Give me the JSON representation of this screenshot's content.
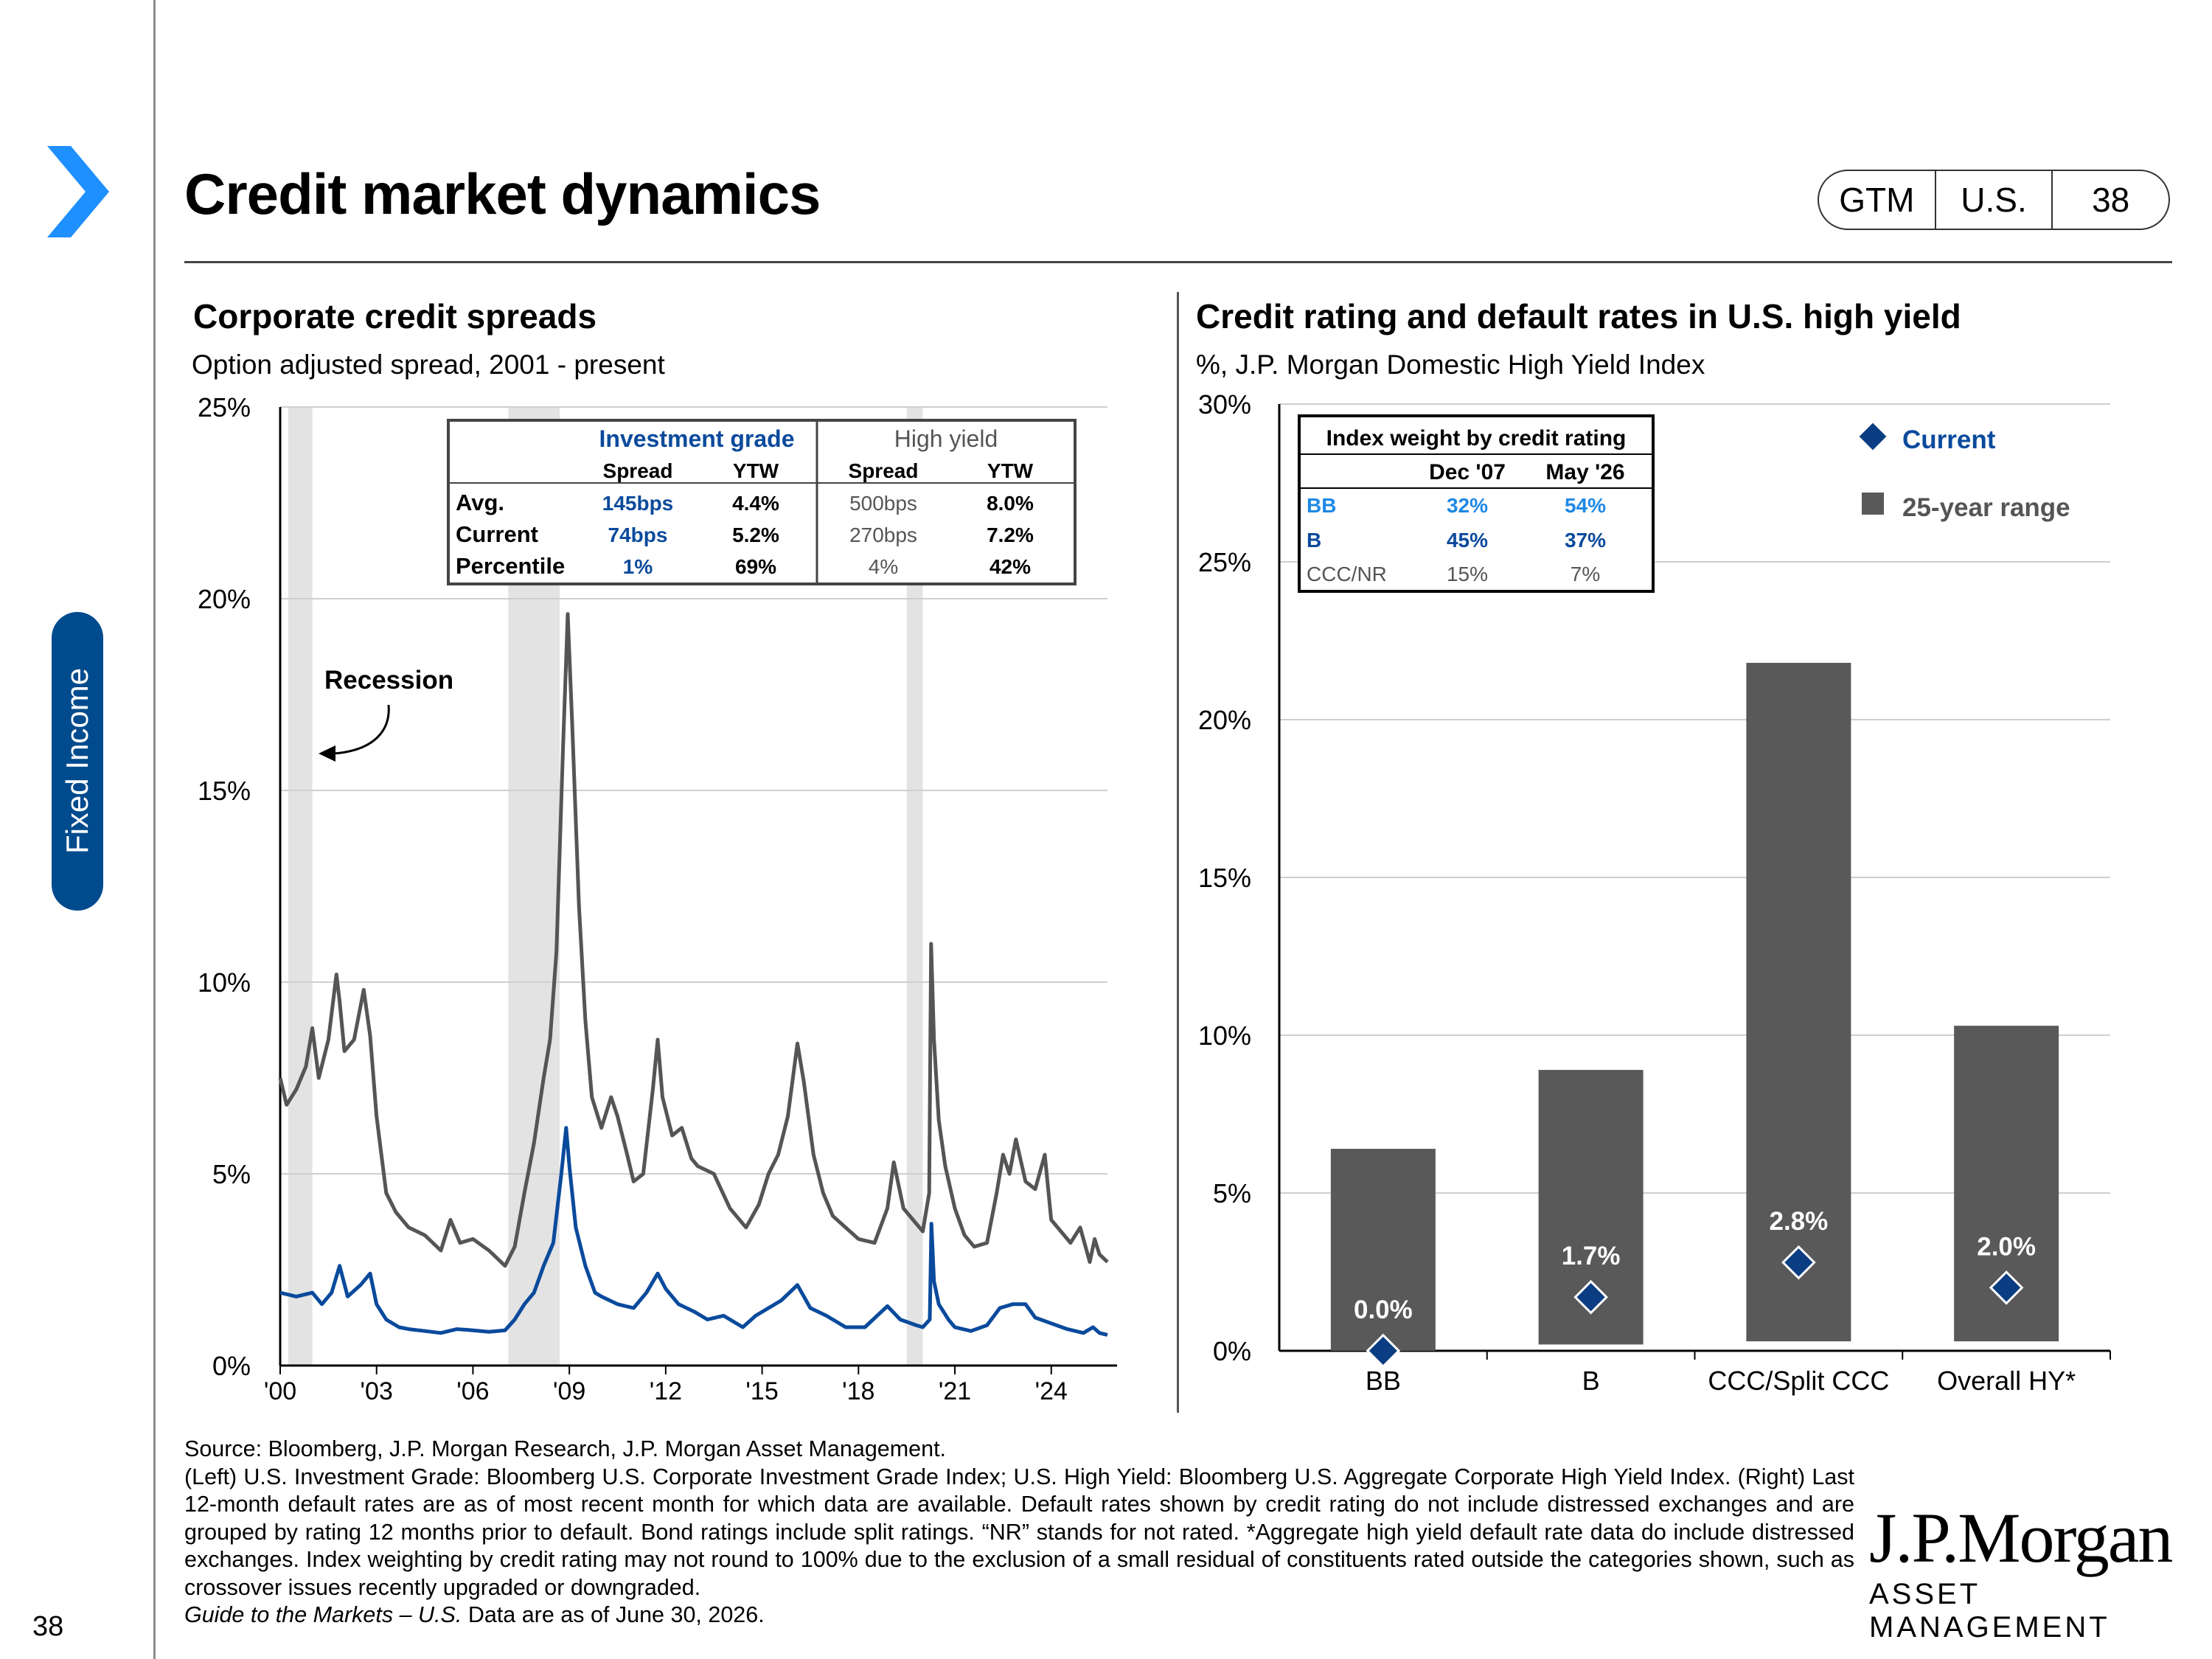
{
  "page": {
    "title": "Credit market dynamics",
    "section_tab": "Fixed Income",
    "page_number": "38",
    "badge": [
      "GTM",
      "U.S.",
      "38"
    ]
  },
  "left_chart": {
    "title": "Corporate credit spreads",
    "subtitle": "Option adjusted spread, 2001 - present"
  },
  "right_chart": {
    "title": "Credit rating and default rates in U.S. high yield",
    "subtitle": "%, J.P. Morgan Domestic High Yield Index"
  },
  "footnotes": {
    "source": "Source: Bloomberg, J.P. Morgan Research, J.P. Morgan Asset Management.",
    "notes": "(Left) U.S. Investment Grade: Bloomberg U.S. Corporate Investment Grade Index; U.S. High Yield: Bloomberg U.S. Aggregate Corporate High Yield Index. (Right) Last 12-month default rates are as of most recent month for which data are available. Default rates shown by credit rating do not include distressed exchanges and are grouped by rating 12 months prior to default. Bond ratings include split ratings. “NR” stands for not rated. *Aggregate high yield default rate data do include distressed exchanges. Index weighting by credit rating may not round to 100% due to the exclusion of a small residual of constituents rated outside the categories shown, such as crossover issues recently upgraded or downgraded.",
    "guide_italic": "Guide to the Markets – U.S.",
    "guide_date": " Data are as of June 30, 2026."
  },
  "logo": {
    "name": "J.P.Morgan",
    "sub": "ASSET MANAGEMENT"
  },
  "colors": {
    "ig": "#0a4a9c",
    "hy": "#555555",
    "recession": "#e3e3e3",
    "accent": "#1e90ff",
    "bar": "#595959",
    "diamond": "#0a3d82",
    "bb_text": "#1e88e5"
  },
  "chart_data": [
    {
      "type": "line",
      "title": "Corporate credit spreads",
      "subtitle": "Option adjusted spread, 2001 - present",
      "ylim": [
        0,
        25
      ],
      "yticks": [
        "0%",
        "5%",
        "10%",
        "15%",
        "20%",
        "25%"
      ],
      "xticks": [
        "'00",
        "'03",
        "'06",
        "'09",
        "'12",
        "'15",
        "'18",
        "'21",
        "'24"
      ],
      "xlim": [
        2000.0,
        2025.75
      ],
      "grid": true,
      "annotation": "Recession",
      "recessions": [
        [
          2000.25,
          2001.0
        ],
        [
          2007.1,
          2008.7
        ],
        [
          2019.5,
          2020.0
        ]
      ],
      "series": [
        {
          "key": "hy",
          "x": [
            2000.0,
            2000.2,
            2000.5,
            2000.8,
            2001.0,
            2001.2,
            2001.5,
            2001.75,
            2001.85,
            2002.0,
            2002.3,
            2002.6,
            2002.8,
            2003.0,
            2003.3,
            2003.6,
            2004.0,
            2004.5,
            2005.0,
            2005.3,
            2005.6,
            2006.0,
            2006.5,
            2007.0,
            2007.3,
            2007.6,
            2007.9,
            2008.2,
            2008.4,
            2008.6,
            2008.8,
            2008.95,
            2009.1,
            2009.3,
            2009.5,
            2009.7,
            2010.0,
            2010.3,
            2010.5,
            2010.8,
            2011.0,
            2011.3,
            2011.6,
            2011.75,
            2011.9,
            2012.2,
            2012.5,
            2012.8,
            2013.0,
            2013.5,
            2014.0,
            2014.5,
            2014.9,
            2015.2,
            2015.5,
            2015.8,
            2016.1,
            2016.3,
            2016.6,
            2016.9,
            2017.2,
            2017.6,
            2018.0,
            2018.5,
            2018.9,
            2019.1,
            2019.4,
            2019.8,
            2020.0,
            2020.2,
            2020.26,
            2020.35,
            2020.5,
            2020.7,
            2021.0,
            2021.3,
            2021.6,
            2022.0,
            2022.3,
            2022.5,
            2022.7,
            2022.9,
            2023.2,
            2023.5,
            2023.8,
            2024.0,
            2024.3,
            2024.6,
            2024.9,
            2025.2,
            2025.35,
            2025.5,
            2025.75
          ],
          "y": [
            7.5,
            6.8,
            7.2,
            7.8,
            8.8,
            7.5,
            8.5,
            10.2,
            9.5,
            8.2,
            8.5,
            9.8,
            8.6,
            6.5,
            4.5,
            4.0,
            3.6,
            3.4,
            3.0,
            3.8,
            3.2,
            3.3,
            3.0,
            2.6,
            3.1,
            4.5,
            5.8,
            7.5,
            8.5,
            10.8,
            16.0,
            19.6,
            16.5,
            12.0,
            9.0,
            7.0,
            6.2,
            7.0,
            6.5,
            5.5,
            4.8,
            5.0,
            7.2,
            8.5,
            7.0,
            6.0,
            6.2,
            5.4,
            5.2,
            5.0,
            4.1,
            3.6,
            4.2,
            5.0,
            5.5,
            6.5,
            8.4,
            7.4,
            5.5,
            4.5,
            3.9,
            3.6,
            3.3,
            3.2,
            4.1,
            5.3,
            4.1,
            3.7,
            3.5,
            4.5,
            11.0,
            8.5,
            6.4,
            5.2,
            4.1,
            3.4,
            3.1,
            3.2,
            4.5,
            5.5,
            5.0,
            5.9,
            4.8,
            4.6,
            5.5,
            3.8,
            3.5,
            3.2,
            3.6,
            2.7,
            3.3,
            2.9,
            2.7
          ]
        },
        {
          "key": "ig",
          "x": [
            2000.0,
            2000.5,
            2001.0,
            2001.3,
            2001.6,
            2001.85,
            2002.1,
            2002.5,
            2002.8,
            2003.0,
            2003.3,
            2003.7,
            2004.0,
            2004.5,
            2005.0,
            2005.5,
            2006.0,
            2006.5,
            2007.0,
            2007.3,
            2007.6,
            2007.9,
            2008.2,
            2008.5,
            2008.75,
            2008.9,
            2009.0,
            2009.2,
            2009.5,
            2009.8,
            2010.0,
            2010.5,
            2011.0,
            2011.4,
            2011.75,
            2012.0,
            2012.4,
            2012.9,
            2013.3,
            2013.8,
            2014.4,
            2014.8,
            2015.2,
            2015.6,
            2016.1,
            2016.5,
            2017.0,
            2017.6,
            2018.2,
            2018.9,
            2019.3,
            2019.8,
            2020.0,
            2020.22,
            2020.27,
            2020.35,
            2020.5,
            2020.8,
            2021.0,
            2021.5,
            2022.0,
            2022.4,
            2022.8,
            2023.2,
            2023.5,
            2024.0,
            2024.5,
            2025.0,
            2025.3,
            2025.5,
            2025.75
          ],
          "y": [
            1.9,
            1.8,
            1.9,
            1.6,
            1.9,
            2.6,
            1.8,
            2.1,
            2.4,
            1.6,
            1.2,
            1.0,
            0.95,
            0.9,
            0.85,
            0.95,
            0.92,
            0.88,
            0.92,
            1.2,
            1.6,
            1.9,
            2.6,
            3.2,
            5.0,
            6.2,
            5.2,
            3.6,
            2.6,
            1.9,
            1.8,
            1.6,
            1.5,
            1.9,
            2.4,
            2.0,
            1.6,
            1.4,
            1.2,
            1.3,
            1.0,
            1.3,
            1.5,
            1.7,
            2.1,
            1.5,
            1.3,
            1.0,
            1.0,
            1.55,
            1.2,
            1.05,
            1.0,
            1.2,
            3.7,
            2.2,
            1.6,
            1.2,
            1.0,
            0.9,
            1.05,
            1.5,
            1.6,
            1.6,
            1.25,
            1.1,
            0.95,
            0.85,
            1.0,
            0.85,
            0.8
          ]
        }
      ],
      "table": {
        "groups": [
          "Investment grade",
          "High yield"
        ],
        "columns": [
          "Spread",
          "YTW",
          "Spread",
          "YTW"
        ],
        "rows": [
          {
            "label": "Avg.",
            "values": [
              "145bps",
              "4.4%",
              "500bps",
              "8.0%"
            ]
          },
          {
            "label": "Current",
            "values": [
              "74bps",
              "5.2%",
              "270bps",
              "7.2%"
            ]
          },
          {
            "label": "Percentile",
            "values": [
              "1%",
              "69%",
              "4%",
              "42%"
            ]
          }
        ]
      }
    },
    {
      "type": "bar",
      "title": "Credit rating and default rates in U.S. high yield",
      "subtitle": "%, J.P. Morgan Domestic High Yield Index",
      "categories": [
        "BB",
        "B",
        "CCC/Split CCC",
        "Overall HY*"
      ],
      "ylim": [
        0,
        30
      ],
      "yticks": [
        "0%",
        "5%",
        "10%",
        "15%",
        "20%",
        "25%",
        "30%"
      ],
      "grid": true,
      "legend": [
        "Current",
        "25-year range"
      ],
      "legend_position": "top-right",
      "series": [
        {
          "name": "25-year range",
          "low": [
            0.0,
            0.2,
            0.3,
            0.3
          ],
          "high": [
            6.4,
            8.9,
            21.8,
            10.3
          ]
        },
        {
          "name": "Current",
          "values": [
            0.0,
            1.7,
            2.8,
            2.0
          ],
          "labels": [
            "0.0%",
            "1.7%",
            "2.8%",
            "2.0%"
          ]
        }
      ],
      "table": {
        "title": "Index weight by credit rating",
        "columns": [
          "Dec '07",
          "May '26"
        ],
        "rows": [
          {
            "label": "BB",
            "values": [
              "32%",
              "54%"
            ]
          },
          {
            "label": "B",
            "values": [
              "45%",
              "37%"
            ]
          },
          {
            "label": "CCC/NR",
            "values": [
              "15%",
              "7%"
            ]
          }
        ]
      }
    }
  ]
}
